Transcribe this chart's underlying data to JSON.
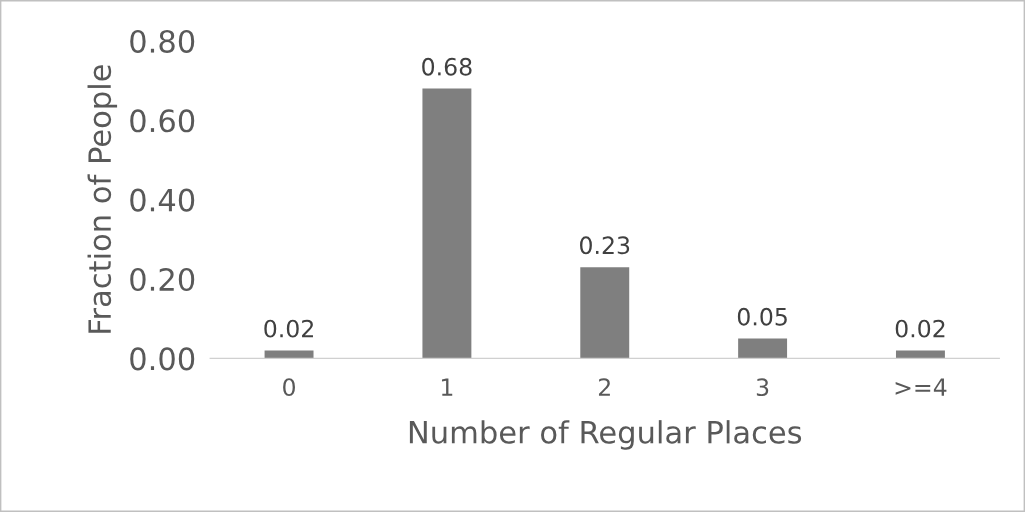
{
  "chart_data": {
    "type": "bar",
    "xlabel": "Number of Regular Places",
    "ylabel": "Fraction of People",
    "categories": [
      "0",
      "1",
      "2",
      "3",
      ">=4"
    ],
    "values": [
      0.02,
      0.68,
      0.23,
      0.05,
      0.02
    ],
    "value_labels": [
      "0.02",
      "0.68",
      "0.23",
      "0.05",
      "0.02"
    ],
    "color": "#7f7f7f",
    "ylim": [
      0,
      0.8
    ],
    "yticks": [
      {
        "value": 0,
        "label": "0.00"
      },
      {
        "value": 0.2,
        "label": "0.20"
      },
      {
        "value": 0.4,
        "label": "0.40"
      },
      {
        "value": 0.6,
        "label": "0.60"
      },
      {
        "value": 0.8,
        "label": "0.80"
      }
    ],
    "grid": false,
    "legend": false
  }
}
